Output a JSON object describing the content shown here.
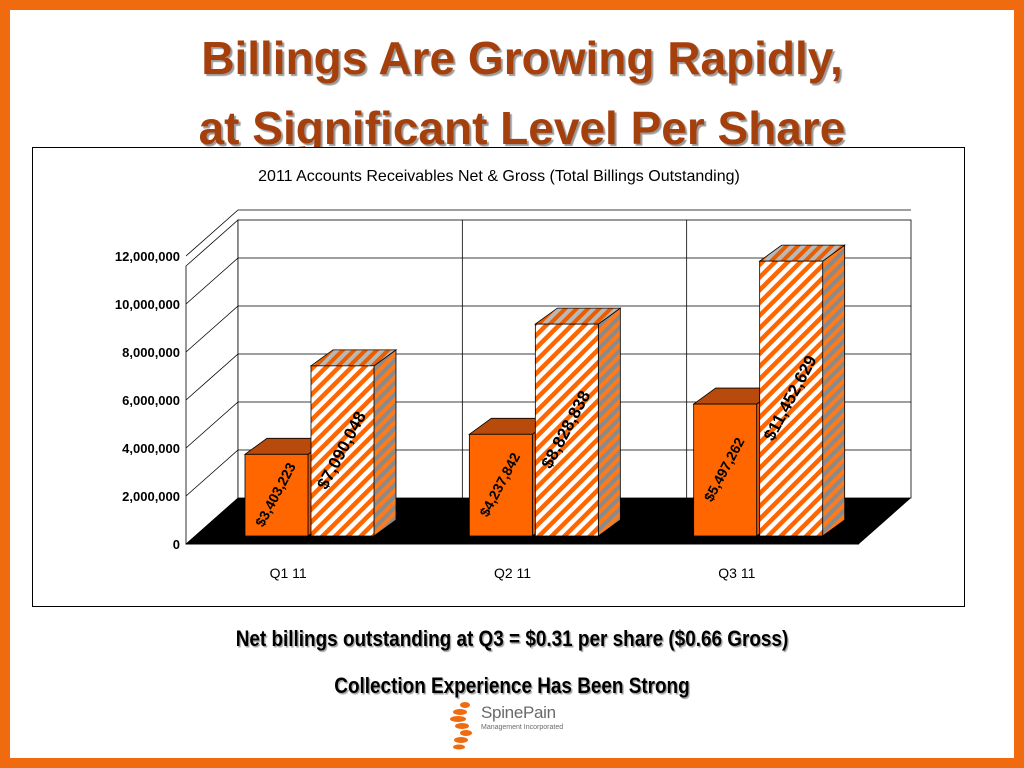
{
  "slide": {
    "title_line1": "Billings Are Growing Rapidly,",
    "title_line2": "at Significant Level Per Share",
    "footnote1": "Net billings outstanding at Q3 = $0.31 per share ($0.66 Gross)",
    "footnote2": "Collection Experience Has Been Strong",
    "logo_name": "SpinePain",
    "logo_sub": "Management Incorporated"
  },
  "colors": {
    "border": "#f06a0f",
    "title": "#a53f0b",
    "net_bar": "#ff6600",
    "gross_bar": "#ff6600",
    "floor": "#000000"
  },
  "chart_data": {
    "type": "bar",
    "title": "2011 Accounts Receivables Net & Gross (Total Billings Outstanding)",
    "categories": [
      "Q1 11",
      "Q2 11",
      "Q3 11"
    ],
    "series": [
      {
        "values": [
          3403223,
          4237842,
          5497262
        ],
        "labels": [
          "$3,403,223",
          "$4,237,842",
          "$5,497,262"
        ],
        "style": "solid"
      },
      {
        "values": [
          7090048,
          8828838,
          11452629
        ],
        "labels": [
          "$7,090,048",
          "$8,828,838",
          "$11,452,629"
        ],
        "style": "hatched"
      }
    ],
    "yticks": [
      "0",
      "2,000,000",
      "4,000,000",
      "6,000,000",
      "8,000,000",
      "10,000,000",
      "12,000,000"
    ],
    "ylim": [
      0,
      12000000
    ],
    "grid": true,
    "legend": "none",
    "three_d": true
  }
}
